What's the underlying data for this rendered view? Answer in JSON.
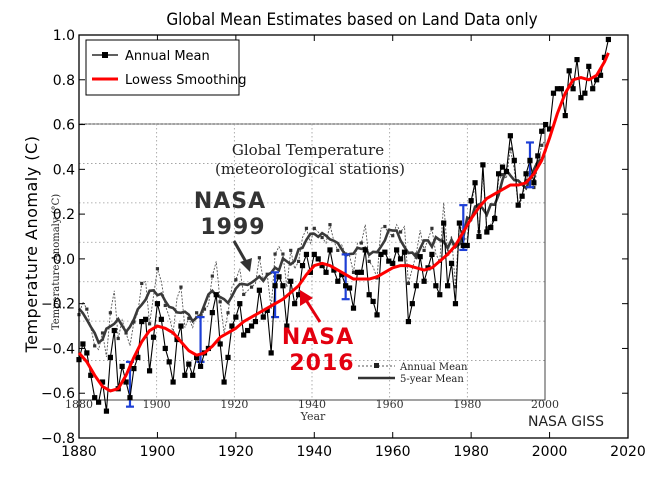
{
  "chart_data": {
    "type": "line",
    "title": "Global Mean Estimates based on Land Data only",
    "xlabel": "",
    "ylabel": "Temperature Anomaly (C)",
    "xlim": [
      1880,
      2020
    ],
    "ylim": [
      -0.8,
      1.0
    ],
    "xticks": [
      1880,
      1900,
      1920,
      1940,
      1960,
      1980,
      2000,
      2020
    ],
    "yticks": [
      -0.8,
      -0.6,
      -0.4,
      -0.2,
      0.0,
      0.2,
      0.4,
      0.6,
      0.8,
      1.0
    ],
    "xtick_labels": [
      "1880",
      "1900",
      "1920",
      "1940",
      "1960",
      "1980",
      "2000",
      "2020"
    ],
    "ytick_labels": [
      "−0.8",
      "−0.6",
      "−0.4",
      "−0.2",
      "0.0",
      "0.2",
      "0.4",
      "0.6",
      "0.8",
      "1.0"
    ],
    "legend_position": "top-left",
    "series": [
      {
        "name": "Annual Mean",
        "color": "#000000",
        "x": [
          1880,
          1881,
          1882,
          1883,
          1884,
          1885,
          1886,
          1887,
          1888,
          1889,
          1890,
          1891,
          1892,
          1893,
          1894,
          1895,
          1896,
          1897,
          1898,
          1899,
          1900,
          1901,
          1902,
          1903,
          1904,
          1905,
          1906,
          1907,
          1908,
          1909,
          1910,
          1911,
          1912,
          1913,
          1914,
          1915,
          1916,
          1917,
          1918,
          1919,
          1920,
          1921,
          1922,
          1923,
          1924,
          1925,
          1926,
          1927,
          1928,
          1929,
          1930,
          1931,
          1932,
          1933,
          1934,
          1935,
          1936,
          1937,
          1938,
          1939,
          1940,
          1941,
          1942,
          1943,
          1944,
          1945,
          1946,
          1947,
          1948,
          1949,
          1950,
          1951,
          1952,
          1953,
          1954,
          1955,
          1956,
          1957,
          1958,
          1959,
          1960,
          1961,
          1962,
          1963,
          1964,
          1965,
          1966,
          1967,
          1968,
          1969,
          1970,
          1971,
          1972,
          1973,
          1974,
          1975,
          1976,
          1977,
          1978,
          1979,
          1980,
          1981,
          1982,
          1983,
          1984,
          1985,
          1986,
          1987,
          1988,
          1989,
          1990,
          1991,
          1992,
          1993,
          1994,
          1995,
          1996,
          1997,
          1998,
          1999,
          2000,
          2001,
          2002,
          2003,
          2004,
          2005,
          2006,
          2007,
          2008,
          2009,
          2010,
          2011,
          2012,
          2013,
          2014,
          2015
        ],
        "values": [
          -0.45,
          -0.38,
          -0.42,
          -0.52,
          -0.62,
          -0.64,
          -0.55,
          -0.68,
          -0.44,
          -0.32,
          -0.58,
          -0.48,
          -0.55,
          -0.62,
          -0.49,
          -0.44,
          -0.28,
          -0.27,
          -0.5,
          -0.35,
          -0.2,
          -0.27,
          -0.4,
          -0.46,
          -0.55,
          -0.36,
          -0.3,
          -0.52,
          -0.47,
          -0.52,
          -0.44,
          -0.48,
          -0.42,
          -0.4,
          -0.24,
          -0.16,
          -0.38,
          -0.55,
          -0.44,
          -0.3,
          -0.26,
          -0.2,
          -0.34,
          -0.32,
          -0.3,
          -0.28,
          -0.14,
          -0.26,
          -0.23,
          -0.42,
          -0.12,
          -0.08,
          -0.12,
          -0.3,
          -0.1,
          -0.2,
          -0.16,
          -0.03,
          0.02,
          -0.06,
          0.02,
          0.0,
          -0.03,
          -0.06,
          0.04,
          -0.05,
          -0.1,
          -0.07,
          -0.12,
          -0.13,
          -0.22,
          -0.06,
          -0.06,
          0.04,
          -0.16,
          -0.19,
          -0.25,
          0.02,
          0.03,
          -0.01,
          -0.02,
          0.04,
          0.0,
          0.03,
          -0.28,
          -0.2,
          -0.12,
          0.01,
          -0.1,
          -0.04,
          0.02,
          -0.12,
          -0.16,
          0.16,
          -0.12,
          -0.02,
          -0.2,
          0.16,
          0.06,
          0.06,
          0.26,
          0.34,
          0.1,
          0.42,
          0.12,
          0.14,
          0.18,
          0.38,
          0.41,
          0.39,
          0.55,
          0.44,
          0.24,
          0.28,
          0.38,
          0.44,
          0.34,
          0.46,
          0.57,
          0.6,
          0.58,
          0.74,
          0.76,
          0.76,
          0.64,
          0.84,
          0.76,
          0.89,
          0.72,
          0.74,
          0.86,
          0.76,
          0.8,
          0.82,
          0.9,
          0.98
        ]
      },
      {
        "name": "Lowess Smoothing",
        "color": "#ff0000",
        "x": [
          1880,
          1882,
          1884,
          1886,
          1888,
          1890,
          1892,
          1894,
          1896,
          1898,
          1900,
          1902,
          1904,
          1906,
          1908,
          1910,
          1912,
          1914,
          1916,
          1918,
          1920,
          1922,
          1924,
          1926,
          1928,
          1930,
          1932,
          1934,
          1936,
          1938,
          1940,
          1942,
          1944,
          1946,
          1948,
          1950,
          1952,
          1954,
          1956,
          1958,
          1960,
          1962,
          1964,
          1966,
          1968,
          1970,
          1972,
          1974,
          1976,
          1978,
          1980,
          1982,
          1984,
          1986,
          1988,
          1990,
          1992,
          1994,
          1996,
          1998,
          2000,
          2002,
          2004,
          2006,
          2008,
          2010,
          2012,
          2014,
          2015
        ],
        "values": [
          -0.42,
          -0.46,
          -0.52,
          -0.57,
          -0.59,
          -0.58,
          -0.52,
          -0.44,
          -0.37,
          -0.32,
          -0.3,
          -0.31,
          -0.33,
          -0.37,
          -0.41,
          -0.43,
          -0.42,
          -0.39,
          -0.35,
          -0.33,
          -0.31,
          -0.28,
          -0.26,
          -0.24,
          -0.22,
          -0.2,
          -0.18,
          -0.15,
          -0.12,
          -0.07,
          -0.03,
          -0.02,
          -0.03,
          -0.05,
          -0.07,
          -0.09,
          -0.09,
          -0.09,
          -0.08,
          -0.06,
          -0.04,
          -0.03,
          -0.03,
          -0.04,
          -0.05,
          -0.04,
          -0.01,
          0.02,
          0.06,
          0.12,
          0.18,
          0.23,
          0.27,
          0.29,
          0.31,
          0.33,
          0.33,
          0.34,
          0.38,
          0.44,
          0.54,
          0.65,
          0.74,
          0.8,
          0.81,
          0.8,
          0.82,
          0.88,
          0.92
        ]
      }
    ],
    "inset": {
      "title_line1": "Global Temperature",
      "title_line2": "(meteorological stations)",
      "ylabel": "Temperature Anomaly (°C)",
      "xlabel": "Year",
      "xtick_labels": [
        "1880",
        "1900",
        "1920",
        "1940",
        "1960",
        "1980",
        "2000"
      ],
      "legend_annual": "Annual Mean",
      "legend_5yr": "5-year Mean"
    },
    "annotations": {
      "nasa_1999_line1": "NASA",
      "nasa_1999_line2": "1999",
      "nasa_2016_line1": "NASA",
      "nasa_2016_line2": "2016",
      "credit": "NASA GISS"
    }
  }
}
